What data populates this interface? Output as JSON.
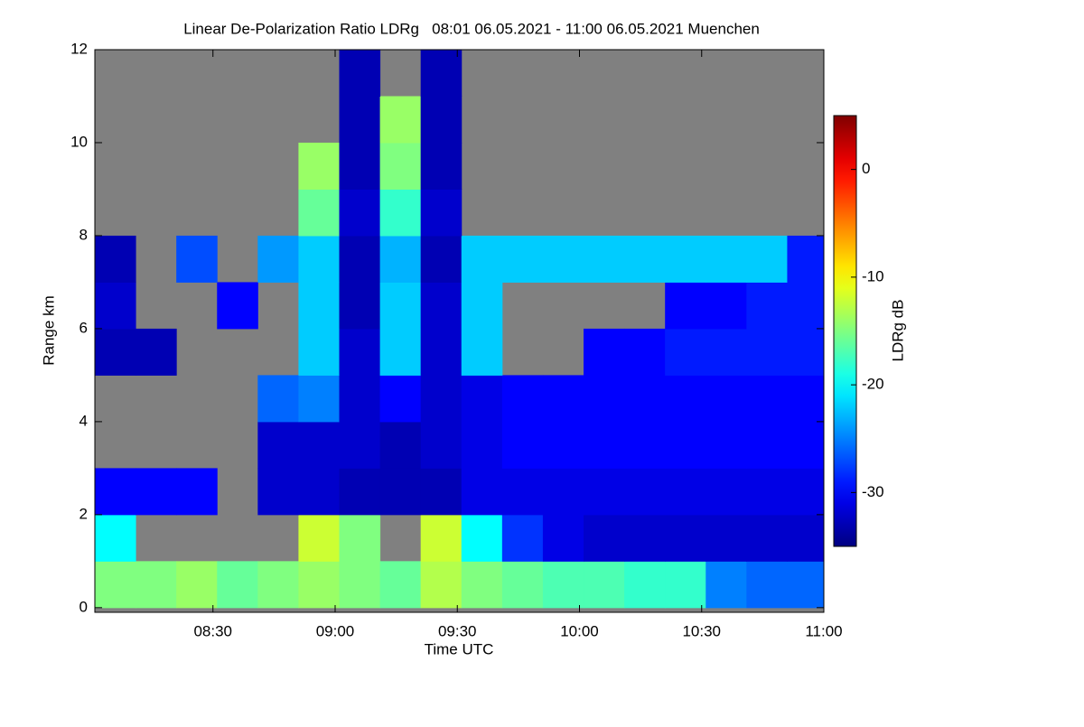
{
  "chart_data": {
    "type": "heatmap",
    "title": "Linear De-Polarization Ratio LDRg   08:01 06.05.2021 - 11:00 06.05.2021 Muenchen",
    "x_label": "Time UTC",
    "y_label": "Range km",
    "colorbar_label": "LDRg dB",
    "colormap": "jet",
    "missing_color": "#808080",
    "xlim": [
      481,
      660
    ],
    "xticks": [
      {
        "value": 510,
        "label": "08:30"
      },
      {
        "value": 540,
        "label": "09:00"
      },
      {
        "value": 570,
        "label": "09:30"
      },
      {
        "value": 600,
        "label": "10:00"
      },
      {
        "value": 630,
        "label": "10:30"
      },
      {
        "value": 660,
        "label": "11:00"
      }
    ],
    "ylim": [
      -0.1,
      12
    ],
    "yticks": [
      0,
      2,
      4,
      6,
      8,
      10,
      12
    ],
    "clim": [
      -35,
      5
    ],
    "cticks": [
      0,
      -10,
      -20,
      -30
    ],
    "x": [
      486,
      496,
      506,
      516,
      526,
      536,
      546,
      556,
      566,
      576,
      586,
      596,
      606,
      616,
      626,
      636,
      646,
      656
    ],
    "y": [
      0.5,
      1.5,
      2.5,
      3.5,
      4.5,
      5.5,
      6.5,
      7.5,
      8.5,
      9.5,
      10.5,
      11.5
    ],
    "z": [
      [
        -15,
        -15,
        -14,
        -16,
        -15,
        -14,
        -15,
        -16,
        -13,
        -15,
        -16,
        -17,
        -17,
        -18,
        -18,
        -25,
        -26,
        -26
      ],
      [
        -20,
        null,
        null,
        null,
        null,
        -12,
        -15,
        null,
        -12,
        -20,
        -28,
        -31,
        -32,
        -32,
        -32,
        -32,
        -32,
        -32
      ],
      [
        -30,
        -30,
        -30,
        null,
        -32,
        -32,
        -33,
        -33,
        -33,
        -31,
        -31,
        -31,
        -31,
        -31,
        -31,
        -31,
        -31,
        -31
      ],
      [
        null,
        null,
        null,
        null,
        -32,
        -32,
        -32,
        -33,
        -32,
        -31,
        -30,
        -30,
        -30,
        -30,
        -30,
        -30,
        -30,
        -30
      ],
      [
        null,
        null,
        null,
        null,
        -26,
        -25,
        -32,
        -30,
        -32,
        -31,
        -30,
        -30,
        -30,
        -30,
        -30,
        -30,
        -30,
        -30
      ],
      [
        -33,
        -33,
        null,
        null,
        null,
        -22,
        -32,
        -22,
        -32,
        -22,
        null,
        null,
        -30,
        -30,
        -29,
        -29,
        -29,
        -29
      ],
      [
        -32,
        null,
        null,
        -30,
        null,
        -22,
        -33,
        -22,
        -32,
        -22,
        null,
        null,
        null,
        null,
        -30,
        -30,
        -29,
        -29
      ],
      [
        -33,
        null,
        -27,
        null,
        -24,
        -22,
        -33,
        -23,
        -33,
        -22,
        -22,
        -22,
        -22,
        -22,
        -22,
        -22,
        -22,
        -29
      ],
      [
        null,
        null,
        null,
        null,
        null,
        -16,
        -32,
        -18,
        -32,
        null,
        null,
        null,
        null,
        null,
        null,
        null,
        null,
        null
      ],
      [
        null,
        null,
        null,
        null,
        null,
        -14,
        -33,
        -15,
        -33,
        null,
        null,
        null,
        null,
        null,
        null,
        null,
        null,
        null
      ],
      [
        null,
        null,
        null,
        null,
        null,
        null,
        -33,
        -14,
        -33,
        null,
        null,
        null,
        null,
        null,
        null,
        null,
        null,
        null
      ],
      [
        null,
        null,
        null,
        null,
        null,
        null,
        -33,
        null,
        -33,
        null,
        null,
        null,
        null,
        null,
        null,
        null,
        null,
        null
      ]
    ]
  }
}
